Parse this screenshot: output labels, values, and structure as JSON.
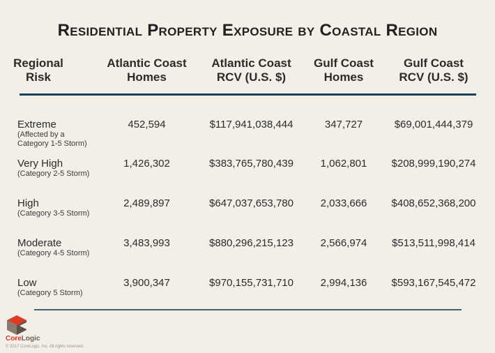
{
  "title": "Residential Property Exposure by Coastal Region",
  "headers": {
    "risk": [
      "Regional",
      "Risk"
    ],
    "atlantic_homes": [
      "Atlantic Coast",
      "Homes"
    ],
    "atlantic_rcv": [
      "Atlantic Coast",
      "RCV (U.S. $)"
    ],
    "gulf_homes": [
      "Gulf Coast",
      "Homes"
    ],
    "gulf_rcv": [
      "Gulf Coast",
      "RCV (U.S. $)"
    ]
  },
  "rows": [
    {
      "risk": "Extreme",
      "sub1": "(Affected by a",
      "sub2": "Category 1-5 Storm)",
      "atlantic_homes": "452,594",
      "atlantic_rcv": "$117,941,038,444",
      "gulf_homes": "347,727",
      "gulf_rcv": "$69,001,444,379"
    },
    {
      "risk": "Very High",
      "sub1": "(Category 2-5 Storm)",
      "sub2": "",
      "atlantic_homes": "1,426,302",
      "atlantic_rcv": "$383,765,780,439",
      "gulf_homes": "1,062,801",
      "gulf_rcv": "$208,999,190,274"
    },
    {
      "risk": "High",
      "sub1": "(Category 3-5 Storm)",
      "sub2": "",
      "atlantic_homes": "2,489,897",
      "atlantic_rcv": "$647,037,653,780",
      "gulf_homes": "2,033,666",
      "gulf_rcv": "$408,652,368,200"
    },
    {
      "risk": "Moderate",
      "sub1": "(Category 4-5 Storm)",
      "sub2": "",
      "atlantic_homes": "3,483,993",
      "atlantic_rcv": "$880,296,215,123",
      "gulf_homes": "2,566,974",
      "gulf_rcv": "$513,511,998,414"
    },
    {
      "risk": "Low",
      "sub1": "(Category 5 Storm)",
      "sub2": "",
      "atlantic_homes": "3,900,347",
      "atlantic_rcv": "$970,155,731,710",
      "gulf_homes": "2,994,136",
      "gulf_rcv": "$593,167,545,472"
    }
  ],
  "logo": {
    "core": "Core",
    "logic": "Logic"
  },
  "copyright": "© 2017 CoreLogic, Inc. All rights reserved.",
  "colors": {
    "rule": "#1c4257",
    "brand_red": "#e03a27",
    "background": "#f2efe9"
  }
}
